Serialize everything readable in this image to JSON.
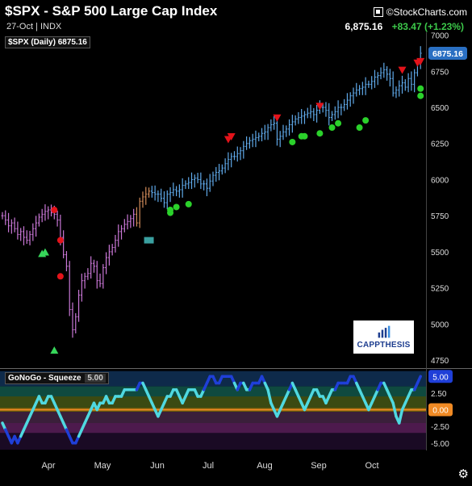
{
  "header": {
    "title": "$SPX - S&P 500 Large Cap Index",
    "subtitle": "27-Oct | INDX",
    "logo": "©StockCharts.com",
    "last_price": "6,875.16",
    "change": "+83.47 (+1.23%)"
  },
  "legend": {
    "label": "$SPX (Daily) 6875.16"
  },
  "indicator_legend": {
    "label": "GoNoGo - Squeeze",
    "value": "5.00"
  },
  "watermark": {
    "brand": "CAPPTHESIS"
  },
  "colors": {
    "background": "#000000",
    "go_bar": "#5fa8e8",
    "nogo_bar": "#c977d6",
    "neutral_bar": "#d18b5a",
    "up_triangle": "#37d65a",
    "down_triangle": "#e3131a",
    "green_dot": "#2bd12b",
    "red_dot": "#e3131a",
    "osc_go": "#4fd8e0",
    "osc_strong": "#1f3fd8",
    "zero_line": "#f08a24"
  },
  "chart_data": [
    {
      "type": "ohlc",
      "title": "$SPX - S&P 500 Large Cap Index",
      "y_ticks": [
        7000,
        6750,
        6500,
        6250,
        6000,
        5750,
        5500,
        5250,
        5000,
        4750
      ],
      "ylim": [
        4700,
        7020
      ],
      "x_ticks": [
        "Apr",
        "May",
        "Jun",
        "Jul",
        "Aug",
        "Sep",
        "Oct"
      ],
      "last_value_label": "6875.16",
      "series_close": [
        5750,
        5720,
        5680,
        5700,
        5660,
        5620,
        5640,
        5600,
        5580,
        5620,
        5660,
        5700,
        5740,
        5760,
        5780,
        5790,
        5770,
        5760,
        5720,
        5600,
        5480,
        5400,
        5100,
        4960,
        5050,
        5200,
        5300,
        5330,
        5350,
        5420,
        5400,
        5300,
        5280,
        5390,
        5460,
        5500,
        5530,
        5580,
        5640,
        5660,
        5690,
        5710,
        5730,
        5760,
        5700,
        5850,
        5880,
        5900,
        5920,
        5910,
        5900,
        5900,
        5870,
        5840,
        5900,
        5910,
        5930,
        5920,
        5930,
        5960,
        5970,
        5980,
        6000,
        6010,
        6000,
        5970,
        5970,
        5940,
        5990,
        6030,
        6050,
        6060,
        6080,
        6110,
        6140,
        6160,
        6160,
        6180,
        6200,
        6230,
        6250,
        6270,
        6280,
        6290,
        6300,
        6320,
        6330,
        6360,
        6380,
        6390,
        6280,
        6300,
        6330,
        6350,
        6380,
        6400,
        6420,
        6430,
        6440,
        6450,
        6460,
        6470,
        6450,
        6480,
        6500,
        6500,
        6480,
        6430,
        6450,
        6470,
        6500,
        6500,
        6520,
        6550,
        6580,
        6600,
        6620,
        6630,
        6640,
        6660,
        6660,
        6680,
        6710,
        6720,
        6740,
        6760,
        6730,
        6700,
        6600,
        6620,
        6650,
        6670,
        6640,
        6700,
        6660,
        6740,
        6800,
        6875
      ],
      "bar_state_breaks": {
        "nogo_end": 44,
        "neutral_end": 49
      },
      "down_triangles": [
        [
          "Jul 1",
          6240
        ],
        [
          "Jul 3",
          6260
        ],
        [
          "Jul 24",
          6390
        ],
        [
          "Aug 14",
          6470
        ],
        [
          "Sep 22",
          6720
        ],
        [
          "Sep 30",
          6770
        ],
        [
          "Oct 9",
          6780
        ]
      ],
      "up_triangles": [
        [
          "Apr 1",
          5520
        ],
        [
          "Apr 2",
          5530
        ],
        [
          "Apr 7",
          4850
        ]
      ],
      "green_dots": [
        [
          "Jun 2",
          5770
        ],
        [
          "Jun 3",
          5790
        ],
        [
          "Jun 5",
          5810
        ],
        [
          "Jun 11",
          5830
        ],
        [
          "Aug 1",
          6260
        ],
        [
          "Aug 5",
          6300
        ],
        [
          "Aug 7",
          6300
        ],
        [
          "Aug 14",
          6320
        ],
        [
          "Aug 20",
          6360
        ],
        [
          "Aug 22",
          6390
        ],
        [
          "Sep 3",
          6360
        ],
        [
          "Sep 5",
          6410
        ],
        [
          "Oct 10",
          6580
        ],
        [
          "Oct 20",
          6630
        ]
      ],
      "red_dots": [
        [
          "Mar 25",
          5790
        ],
        [
          "Mar 28",
          5580
        ],
        [
          "Apr 10",
          5330
        ]
      ]
    },
    {
      "type": "oscillator",
      "title": "GoNoGo - Squeeze",
      "y_ticks": [
        5.0,
        2.5,
        0.0,
        -2.5,
        -5.0
      ],
      "ylim": [
        -6,
        6
      ],
      "last_value_label": "5.00",
      "zero_label": "0.00",
      "values": [
        -2,
        -3,
        -4,
        -5,
        -4,
        -5,
        -4,
        -3,
        -2,
        -1,
        0,
        1,
        2,
        1,
        1,
        2,
        2,
        1,
        0,
        -1,
        -2,
        -3,
        -4,
        -5,
        -5,
        -4,
        -3,
        -2,
        -1,
        0,
        1,
        0,
        1,
        1,
        2,
        1,
        1,
        2,
        2,
        2,
        3,
        3,
        3,
        3,
        3,
        4,
        4,
        3,
        2,
        1,
        0,
        -1,
        0,
        1,
        2,
        2,
        3,
        3,
        2,
        1,
        2,
        3,
        3,
        3,
        2,
        2,
        3,
        4,
        5,
        5,
        4,
        4,
        5,
        5,
        5,
        5,
        4,
        3,
        4,
        4,
        3,
        3,
        4,
        4,
        4,
        5,
        4,
        3,
        1,
        0,
        -1,
        0,
        1,
        2,
        3,
        4,
        3,
        2,
        1,
        0,
        1,
        2,
        3,
        3,
        2,
        2,
        1,
        2,
        3,
        3,
        4,
        4,
        4,
        4,
        5,
        5,
        4,
        3,
        2,
        1,
        0,
        1,
        2,
        3,
        4,
        4,
        3,
        2,
        1,
        -1,
        -2,
        0,
        1,
        2,
        3,
        3,
        4,
        5
      ],
      "zones": [
        {
          "from": 3.5,
          "to": 5.8,
          "color": "#0e2a4a"
        },
        {
          "from": 2.0,
          "to": 3.5,
          "color": "#0f4a3f"
        },
        {
          "from": 0.3,
          "to": 2.0,
          "color": "#3b4a12"
        },
        {
          "from": -0.3,
          "to": 0.3,
          "color": "#6b5a0a"
        },
        {
          "from": -2.0,
          "to": -0.3,
          "color": "#3a1f3a"
        },
        {
          "from": -3.5,
          "to": -2.0,
          "color": "#4d1a4d"
        },
        {
          "from": -6.0,
          "to": -3.5,
          "color": "#1a0a24"
        }
      ]
    }
  ]
}
